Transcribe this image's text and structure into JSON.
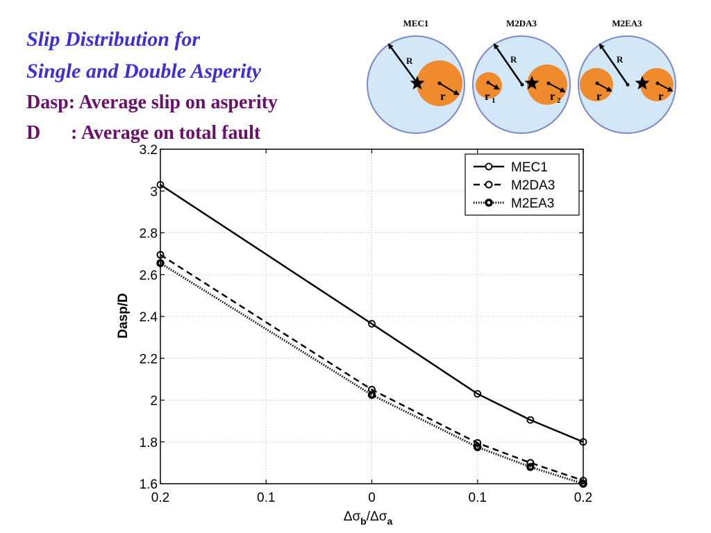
{
  "title": {
    "line1": "Slip Distribution for",
    "line2": "Single and Double Asperity"
  },
  "definitions": [
    {
      "symbol": "Dasp",
      "text": "Dasp: Average slip on asperity"
    },
    {
      "symbol": "D",
      "text": ": Average on total fault"
    }
  ],
  "diagrams": [
    {
      "label": "MEC1",
      "labels": [
        "R",
        "r"
      ]
    },
    {
      "label": "M2DA3",
      "labels": [
        "R",
        "r",
        "1",
        "r",
        "2"
      ]
    },
    {
      "label": "M2EA3",
      "labels": [
        "R",
        "r",
        "r"
      ]
    }
  ],
  "colors": {
    "circle_fill": "#d2e8f8",
    "circle_stroke": "#7d88c4",
    "asperity": "#ef8a2d",
    "title": "#3b30d6",
    "definition": "#6b0f6b"
  },
  "chart_data": {
    "type": "line",
    "xlabel_parts": [
      "Δσ",
      "b",
      "/Δσ",
      "a"
    ],
    "ylabel": "Dasp/D",
    "x": [
      -0.2,
      0,
      0.1,
      0.15,
      0.2
    ],
    "xticks": [
      -0.2,
      -0.1,
      0,
      0.1,
      0.2
    ],
    "xtick_labels": [
      "0.2",
      "0.1",
      "0",
      "0.1",
      "0.2"
    ],
    "yticks": [
      1.6,
      1.8,
      2,
      2.2,
      2.4,
      2.6,
      2.8,
      3,
      3.2
    ],
    "ytick_labels": [
      "1.6",
      "1.8",
      "2",
      "2.2",
      "2.4",
      "2.6",
      "2.8",
      "3",
      "3.2"
    ],
    "xlim": [
      -0.2,
      0.2
    ],
    "ylim": [
      1.6,
      3.2
    ],
    "grid": true,
    "legend_position": "top-right",
    "series": [
      {
        "name": "MEC1",
        "style": "solid",
        "values": [
          3.03,
          2.365,
          2.03,
          1.905,
          1.8
        ]
      },
      {
        "name": "M2DA3",
        "style": "dashed",
        "values": [
          2.695,
          2.05,
          1.795,
          1.7,
          1.615
        ]
      },
      {
        "name": "M2EA3",
        "style": "dotted",
        "values": [
          2.655,
          2.025,
          1.775,
          1.68,
          1.6
        ]
      }
    ]
  }
}
